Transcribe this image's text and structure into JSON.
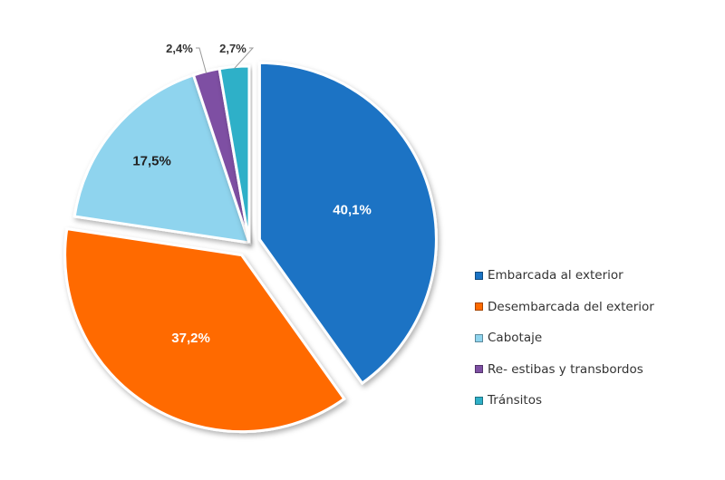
{
  "chart_data": {
    "type": "pie",
    "title": "",
    "slices": [
      {
        "name": "Embarcada al exterior",
        "value": 40.1,
        "label": "40,1%",
        "color": "#1a73c4",
        "label_color": "#ffffff",
        "exploded": true
      },
      {
        "name": "Desembarcada del exterior",
        "value": 37.2,
        "label": "37,2%",
        "color": "#ff6a00",
        "label_color": "#ffffff",
        "exploded": true
      },
      {
        "name": "Cabotaje",
        "value": 17.5,
        "label": "17,5%",
        "color": "#8fd4ee",
        "label_color": "#222222",
        "exploded": false
      },
      {
        "name": "Re- estibas y transbordos",
        "value": 2.4,
        "label": "2,4%",
        "color": "#7e4fa3",
        "label_color": "#333333",
        "exploded": false
      },
      {
        "name": "Tránsitos",
        "value": 2.7,
        "label": "2,7%",
        "color": "#2fb0c8",
        "label_color": "#333333",
        "exploded": false
      }
    ],
    "legend_position": "right-bottom"
  }
}
